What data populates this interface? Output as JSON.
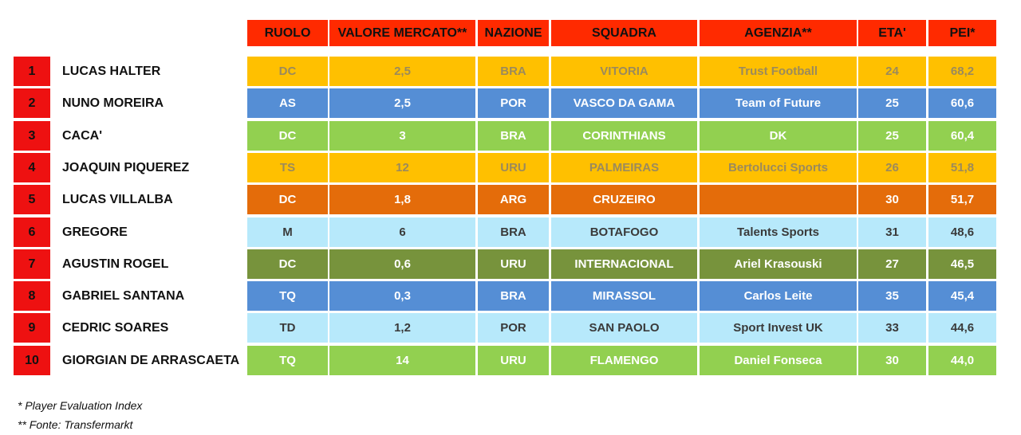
{
  "table": {
    "headers": [
      "RUOLO",
      "VALORE MERCATO**",
      "NAZIONE",
      "SQUADRA",
      "AGENZIA**",
      "ETA'",
      "PEI*"
    ],
    "rows": [
      {
        "rank": "1",
        "name": "LUCAS HALTER",
        "cells": [
          "DC",
          "2,5",
          "BRA",
          "VITORIA",
          "Trust Football",
          "24",
          "68,2"
        ],
        "color": "#ffc000",
        "text_color": "#9b8a5c"
      },
      {
        "rank": "2",
        "name": "NUNO MOREIRA",
        "cells": [
          "AS",
          "2,5",
          "POR",
          "VASCO DA GAMA",
          "Team of Future",
          "25",
          "60,6"
        ],
        "color": "#558ed5",
        "text_color": "#ffffff"
      },
      {
        "rank": "3",
        "name": "CACA'",
        "cells": [
          "DC",
          "3",
          "BRA",
          "CORINTHIANS",
          "DK",
          "25",
          "60,4"
        ],
        "color": "#92d050",
        "text_color": "#ffffff"
      },
      {
        "rank": "4",
        "name": "JOAQUIN PIQUEREZ",
        "cells": [
          "TS",
          "12",
          "URU",
          "PALMEIRAS",
          "Bertolucci Sports",
          "26",
          "51,8"
        ],
        "color": "#ffc000",
        "text_color": "#9b8a5c"
      },
      {
        "rank": "5",
        "name": "LUCAS VILLALBA",
        "cells": [
          "DC",
          "1,8",
          "ARG",
          "CRUZEIRO",
          "",
          "30",
          "51,7"
        ],
        "color": "#e46c0a",
        "text_color": "#ffffff"
      },
      {
        "rank": "6",
        "name": "GREGORE",
        "cells": [
          "M",
          "6",
          "BRA",
          "BOTAFOGO",
          "Talents Sports",
          "31",
          "48,6"
        ],
        "color": "#b7e9fb",
        "text_color": "#3a3a3a"
      },
      {
        "rank": "7",
        "name": "AGUSTIN ROGEL",
        "cells": [
          "DC",
          "0,6",
          "URU",
          "INTERNACIONAL",
          "Ariel Krasouski",
          "27",
          "46,5"
        ],
        "color": "#77933c",
        "text_color": "#ffffff"
      },
      {
        "rank": "8",
        "name": "GABRIEL SANTANA",
        "cells": [
          "TQ",
          "0,3",
          "BRA",
          "MIRASSOL",
          "Carlos Leite",
          "35",
          "45,4"
        ],
        "color": "#558ed5",
        "text_color": "#ffffff"
      },
      {
        "rank": "9",
        "name": "CEDRIC SOARES",
        "cells": [
          "TD",
          "1,2",
          "POR",
          "SAN PAOLO",
          "Sport Invest UK",
          "33",
          "44,6"
        ],
        "color": "#b7e9fb",
        "text_color": "#3a3a3a"
      },
      {
        "rank": "10",
        "name": "GIORGIAN DE ARRASCAETA",
        "cells": [
          "TQ",
          "14",
          "URU",
          "FLAMENGO",
          "Daniel Fonseca",
          "30",
          "44,0"
        ],
        "color": "#92d050",
        "text_color": "#ffffff"
      }
    ]
  },
  "footnotes": [
    "* Player Evaluation Index",
    "** Fonte: Transfermarkt"
  ]
}
